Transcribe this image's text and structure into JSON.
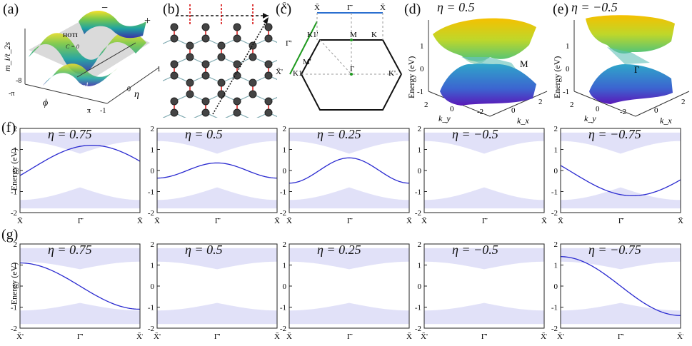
{
  "panel_labels": [
    "(a)",
    "(b)",
    "(c)",
    "(d)",
    "(e)",
    "(f)",
    "(g)"
  ],
  "panel_a": {
    "zlabel": "m_i/t_2s",
    "phi_label": "ϕ",
    "eta_label": "η",
    "regions": [
      "HOTI",
      "C = 0",
      "C = 1",
      "C = -1"
    ],
    "signs": [
      "−",
      "+"
    ],
    "phi_ticks": [
      "-π",
      "π"
    ],
    "eta_ticks": [
      "1",
      "0",
      "-1"
    ],
    "z_ticks": [
      "-8"
    ]
  },
  "panel_c": {
    "points": [
      "X̄'",
      "X̄",
      "Γ̄",
      "X̄",
      "Γ̄'",
      "X̄'",
      "M'",
      "M",
      "K1'",
      "K",
      "K1",
      "Γ",
      "K'"
    ]
  },
  "panel_d": {
    "eta": "η = 0.5",
    "point": "M",
    "ylabel": "Energy (eV)",
    "xlabel": "k_x",
    "ylabel2": "k_y",
    "z_ticks": [
      "1",
      "0",
      "-1"
    ],
    "ky_ticks": [
      "2",
      "0",
      "-2"
    ],
    "kx_ticks": [
      "0",
      "2"
    ]
  },
  "panel_e": {
    "eta": "η = −0.5",
    "point": "Γ",
    "ylabel": "Energy (eV)",
    "xlabel": "k_x",
    "ylabel2": "k_y",
    "z_ticks": [
      "1",
      "0",
      "-1"
    ],
    "ky_ticks": [
      "2",
      "0",
      "-2"
    ],
    "kx_ticks": [
      "0",
      "2"
    ]
  },
  "row_f": {
    "ylabel": "Energy (eV)",
    "y_ticks": [
      "2",
      "1",
      "0",
      "-1",
      "-2"
    ],
    "panels": [
      {
        "eta": "η = 0.75",
        "x_ticks": [
          "X̄",
          "Γ̄",
          "X̄"
        ]
      },
      {
        "eta": "η = 0.5",
        "x_ticks": [
          "X̄",
          "Γ̄",
          "X̄"
        ]
      },
      {
        "eta": "η = 0.25",
        "x_ticks": [
          "X̄",
          "Γ̄",
          "X̄"
        ]
      },
      {
        "eta": "η = −0.5",
        "x_ticks": [
          "X̄",
          "Γ̄",
          "X̄"
        ]
      },
      {
        "eta": "η = −0.75",
        "x_ticks": [
          "X̄",
          "Γ̄",
          "X̄"
        ]
      }
    ]
  },
  "row_g": {
    "ylabel": "Energy (eV)",
    "y_ticks": [
      "2",
      "1",
      "0",
      "-1",
      "-2"
    ],
    "panels": [
      {
        "eta": "η = 0.75",
        "x_ticks": [
          "X̄'",
          "Γ̄'",
          "X̄'"
        ]
      },
      {
        "eta": "η = 0.5",
        "x_ticks": [
          "X̄'",
          "Γ̄'",
          "X̄"
        ]
      },
      {
        "eta": "η = 0.25",
        "x_ticks": [
          "X̄",
          "Γ̄",
          "X̄"
        ]
      },
      {
        "eta": "η = −0.5",
        "x_ticks": [
          "X̄'",
          "Γ̄'",
          "X̄'"
        ]
      },
      {
        "eta": "η = −0.75",
        "x_ticks": [
          "X̄'",
          "Γ̄'",
          "X̄'"
        ]
      }
    ]
  },
  "colors": {
    "band_light": "#c9c9f2",
    "band_edge": "#2a2ad0",
    "frame": "#222",
    "red": "#d40000",
    "green": "#1f9a1f",
    "blue": "#2a6fd0"
  }
}
